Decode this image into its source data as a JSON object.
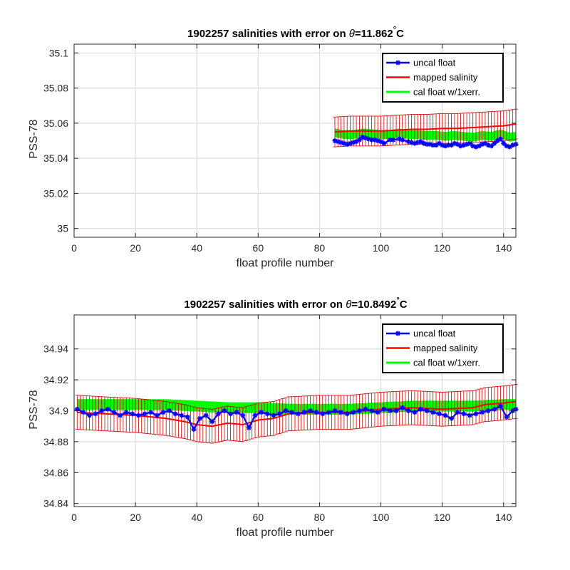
{
  "colors": {
    "uncal_float": "#0000ff",
    "mapped_salinity": "#ff0000",
    "cal_float_band": "#00ff00",
    "error_bars": "#cc0000",
    "grid": "#dddddd",
    "axes": "#262626"
  },
  "chart_data": [
    {
      "type": "line",
      "title_prefix": "1902257 salinities with error on ",
      "title_theta": "θ",
      "title_suffix": "=11.862",
      "title_degree": "°",
      "title_unit": "C",
      "xlabel": "float profile number",
      "ylabel": "PSS-78",
      "xlim": [
        0,
        144
      ],
      "ylim": [
        34.995,
        35.105
      ],
      "xticks": [
        0,
        20,
        40,
        60,
        80,
        100,
        120,
        140
      ],
      "yticks": [
        35,
        35.02,
        35.04,
        35.06,
        35.08,
        35.1
      ],
      "ytick_labels": [
        "35",
        "35.02",
        "35.04",
        "35.06",
        "35.08",
        "35.1"
      ],
      "grid": true,
      "legend_placement": "top-right",
      "legend": [
        "uncal float",
        "mapped salinity",
        "cal float w/1xerr."
      ],
      "x_start": 85,
      "x_end": 144,
      "uncal_float": [
        [
          85,
          35.05
        ],
        [
          86,
          35.0495
        ],
        [
          87,
          35.049
        ],
        [
          88,
          35.0485
        ],
        [
          89,
          35.048
        ],
        [
          90,
          35.0485
        ],
        [
          91,
          35.049
        ],
        [
          92,
          35.0495
        ],
        [
          93,
          35.0505
        ],
        [
          94,
          35.052
        ],
        [
          95,
          35.0515
        ],
        [
          96,
          35.051
        ],
        [
          97,
          35.0505
        ],
        [
          98,
          35.0505
        ],
        [
          99,
          35.05
        ],
        [
          100,
          35.0495
        ],
        [
          101,
          35.0485
        ],
        [
          103,
          35.0505
        ],
        [
          104,
          35.0505
        ],
        [
          106,
          35.051
        ],
        [
          107,
          35.0505
        ],
        [
          109,
          35.0495
        ],
        [
          110,
          35.049
        ],
        [
          111,
          35.0485
        ],
        [
          112,
          35.049
        ],
        [
          113,
          35.0495
        ],
        [
          114,
          35.0485
        ],
        [
          115,
          35.048
        ],
        [
          116,
          35.048
        ],
        [
          117,
          35.0475
        ],
        [
          118,
          35.0475
        ],
        [
          119,
          35.0485
        ],
        [
          120,
          35.0475
        ],
        [
          121,
          35.047
        ],
        [
          122,
          35.0475
        ],
        [
          123,
          35.0475
        ],
        [
          124,
          35.0485
        ],
        [
          125,
          35.048
        ],
        [
          126,
          35.047
        ],
        [
          127,
          35.0475
        ],
        [
          128,
          35.048
        ],
        [
          129,
          35.0485
        ],
        [
          130,
          35.047
        ],
        [
          131,
          35.0465
        ],
        [
          132,
          35.047
        ],
        [
          133,
          35.048
        ],
        [
          134,
          35.0485
        ],
        [
          135,
          35.0475
        ],
        [
          136,
          35.047
        ],
        [
          137,
          35.0485
        ],
        [
          138,
          35.05
        ],
        [
          139,
          35.051
        ],
        [
          140,
          35.0485
        ],
        [
          141,
          35.047
        ],
        [
          142,
          35.0465
        ],
        [
          143,
          35.0475
        ],
        [
          144,
          35.048
        ]
      ],
      "mapped_salinity": [
        [
          85,
          35.055
        ],
        [
          90,
          35.0555
        ],
        [
          95,
          35.0555
        ],
        [
          100,
          35.0555
        ],
        [
          105,
          35.056
        ],
        [
          110,
          35.0565
        ],
        [
          115,
          35.0565
        ],
        [
          120,
          35.057
        ],
        [
          125,
          35.057
        ],
        [
          130,
          35.0575
        ],
        [
          135,
          35.058
        ],
        [
          140,
          35.0585
        ],
        [
          144,
          35.0595
        ]
      ],
      "cal_band_center": [
        [
          85,
          35.0545
        ],
        [
          88,
          35.0535
        ],
        [
          91,
          35.0535
        ],
        [
          94,
          35.0545
        ],
        [
          97,
          35.054
        ],
        [
          100,
          35.0535
        ],
        [
          103,
          35.0535
        ],
        [
          106,
          35.0545
        ],
        [
          109,
          35.0535
        ],
        [
          112,
          35.0535
        ],
        [
          115,
          35.053
        ],
        [
          118,
          35.053
        ],
        [
          121,
          35.0525
        ],
        [
          124,
          35.053
        ],
        [
          127,
          35.0525
        ],
        [
          130,
          35.052
        ],
        [
          133,
          35.053
        ],
        [
          136,
          35.0525
        ],
        [
          139,
          35.054
        ],
        [
          142,
          35.052
        ],
        [
          144,
          35.0525
        ]
      ],
      "cal_band_halfwidth": 0.0025,
      "error_bar_halfwidth": 0.0085
    },
    {
      "type": "line",
      "title_prefix": "1902257 salinities with error on ",
      "title_theta": "θ",
      "title_suffix": "=10.8492",
      "title_degree": "°",
      "title_unit": "C",
      "xlabel": "float profile number",
      "ylabel": "PSS-78",
      "xlim": [
        0,
        144
      ],
      "ylim": [
        34.838,
        34.962
      ],
      "xticks": [
        0,
        20,
        40,
        60,
        80,
        100,
        120,
        140
      ],
      "yticks": [
        34.84,
        34.86,
        34.88,
        34.9,
        34.92,
        34.94
      ],
      "ytick_labels": [
        "34.84",
        "34.86",
        "34.88",
        "34.9",
        "34.92",
        "34.94"
      ],
      "grid": true,
      "legend_placement": "top-right",
      "legend": [
        "uncal float",
        "mapped salinity",
        "cal float w/1xerr."
      ],
      "x_start": 1,
      "x_end": 144,
      "uncal_float": [
        [
          1,
          34.901
        ],
        [
          3,
          34.899
        ],
        [
          5,
          34.897
        ],
        [
          7,
          34.898
        ],
        [
          9,
          34.9
        ],
        [
          11,
          34.901
        ],
        [
          13,
          34.899
        ],
        [
          15,
          34.897
        ],
        [
          17,
          34.899
        ],
        [
          19,
          34.898
        ],
        [
          21,
          34.897
        ],
        [
          23,
          34.898
        ],
        [
          25,
          34.899
        ],
        [
          27,
          34.897
        ],
        [
          29,
          34.899
        ],
        [
          31,
          34.9
        ],
        [
          33,
          34.898
        ],
        [
          35,
          34.897
        ],
        [
          37,
          34.896
        ],
        [
          39,
          34.888
        ],
        [
          41,
          34.895
        ],
        [
          43,
          34.897
        ],
        [
          45,
          34.893
        ],
        [
          47,
          34.898
        ],
        [
          49,
          34.9
        ],
        [
          51,
          34.898
        ],
        [
          53,
          34.899
        ],
        [
          55,
          34.897
        ],
        [
          57,
          34.889
        ],
        [
          59,
          34.897
        ],
        [
          61,
          34.899
        ],
        [
          63,
          34.898
        ],
        [
          65,
          34.897
        ],
        [
          67,
          34.898
        ],
        [
          69,
          34.9
        ],
        [
          71,
          34.899
        ],
        [
          73,
          34.898
        ],
        [
          75,
          34.899
        ],
        [
          77,
          34.9
        ],
        [
          79,
          34.899
        ],
        [
          81,
          34.898
        ],
        [
          83,
          34.899
        ],
        [
          85,
          34.9
        ],
        [
          87,
          34.899
        ],
        [
          89,
          34.898
        ],
        [
          91,
          34.899
        ],
        [
          93,
          34.9
        ],
        [
          95,
          34.901
        ],
        [
          97,
          34.9
        ],
        [
          99,
          34.899
        ],
        [
          101,
          34.901
        ],
        [
          103,
          34.9
        ],
        [
          105,
          34.9
        ],
        [
          107,
          34.902
        ],
        [
          109,
          34.9
        ],
        [
          111,
          34.899
        ],
        [
          113,
          34.901
        ],
        [
          115,
          34.9
        ],
        [
          117,
          34.899
        ],
        [
          119,
          34.898
        ],
        [
          121,
          34.897
        ],
        [
          123,
          34.895
        ],
        [
          125,
          34.899
        ],
        [
          127,
          34.898
        ],
        [
          129,
          34.897
        ],
        [
          131,
          34.898
        ],
        [
          133,
          34.899
        ],
        [
          135,
          34.9
        ],
        [
          137,
          34.901
        ],
        [
          139,
          34.903
        ],
        [
          141,
          34.896
        ],
        [
          143,
          34.9
        ],
        [
          144,
          34.901
        ]
      ],
      "mapped_salinity": [
        [
          1,
          34.899
        ],
        [
          10,
          34.898
        ],
        [
          20,
          34.897
        ],
        [
          30,
          34.895
        ],
        [
          36,
          34.893
        ],
        [
          40,
          34.891
        ],
        [
          45,
          34.89
        ],
        [
          50,
          34.892
        ],
        [
          55,
          34.891
        ],
        [
          60,
          34.894
        ],
        [
          65,
          34.895
        ],
        [
          70,
          34.898
        ],
        [
          80,
          34.899
        ],
        [
          90,
          34.899
        ],
        [
          100,
          34.901
        ],
        [
          110,
          34.902
        ],
        [
          120,
          34.901
        ],
        [
          130,
          34.902
        ],
        [
          134,
          34.904
        ],
        [
          140,
          34.905
        ],
        [
          144,
          34.906
        ]
      ],
      "cal_band_center": [
        [
          1,
          34.904
        ],
        [
          10,
          34.904
        ],
        [
          20,
          34.904
        ],
        [
          30,
          34.904
        ],
        [
          40,
          34.903
        ],
        [
          50,
          34.902
        ],
        [
          60,
          34.902
        ],
        [
          70,
          34.901
        ],
        [
          80,
          34.901
        ],
        [
          90,
          34.901
        ],
        [
          100,
          34.902
        ],
        [
          110,
          34.903
        ],
        [
          120,
          34.903
        ],
        [
          130,
          34.903
        ],
        [
          140,
          34.904
        ],
        [
          144,
          34.904
        ]
      ],
      "cal_band_halfwidth": 0.0035,
      "error_bar_halfwidth": 0.011
    }
  ]
}
